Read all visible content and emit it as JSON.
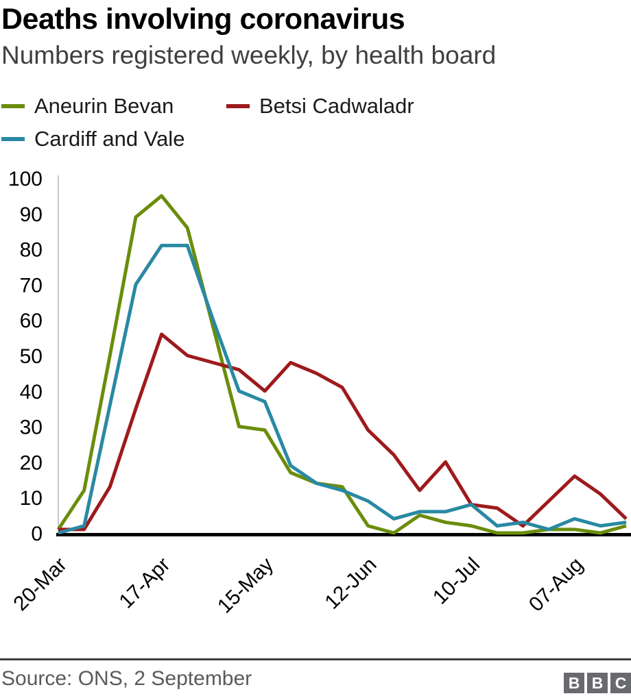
{
  "header": {
    "title": "Deaths involving coronavirus",
    "subtitle": "Numbers registered weekly, by health board"
  },
  "chart_data": {
    "type": "line",
    "title": "Deaths involving coronavirus",
    "subtitle": "Numbers registered weekly, by health board",
    "x": [
      "20-Mar",
      "27-Mar",
      "03-Apr",
      "10-Apr",
      "17-Apr",
      "24-Apr",
      "01-May",
      "08-May",
      "15-May",
      "22-May",
      "29-May",
      "05-Jun",
      "12-Jun",
      "19-Jun",
      "26-Jun",
      "03-Jul",
      "10-Jul",
      "17-Jul",
      "24-Jul",
      "31-Jul",
      "07-Aug",
      "14-Aug",
      "21-Aug"
    ],
    "x_tick_labels": [
      "20-Mar",
      "17-Apr",
      "15-May",
      "12-Jun",
      "10-Jul",
      "07-Aug"
    ],
    "x_tick_indices": [
      0,
      4,
      8,
      12,
      16,
      20
    ],
    "ylim": [
      0,
      100
    ],
    "yticks": [
      0,
      10,
      20,
      30,
      40,
      50,
      60,
      70,
      80,
      90,
      100
    ],
    "grid": false,
    "legend_position": "top-left",
    "axis_color": "#c8c8c8",
    "baseline_color": "#000000",
    "series": [
      {
        "name": "Aneurin Bevan",
        "color": "#6a8d0b",
        "values": [
          1,
          12,
          50,
          89,
          95,
          86,
          58,
          30,
          29,
          17,
          14,
          13,
          2,
          0,
          5,
          3,
          2,
          0,
          0,
          1,
          1,
          0,
          2
        ]
      },
      {
        "name": "Betsi Cadwaladr",
        "color": "#9e1a1c",
        "values": [
          1,
          1,
          13,
          35,
          56,
          50,
          48,
          46,
          40,
          48,
          45,
          41,
          29,
          22,
          12,
          20,
          8,
          7,
          2,
          9,
          16,
          11,
          4
        ]
      },
      {
        "name": "Cardiff and Vale",
        "color": "#2989a3",
        "values": [
          0,
          2,
          36,
          70,
          81,
          81,
          60,
          40,
          37,
          19,
          14,
          12,
          9,
          4,
          6,
          6,
          8,
          2,
          3,
          1,
          4,
          2,
          3
        ]
      }
    ]
  },
  "footer": {
    "source": "Source: ONS, 2 September",
    "logo_letters": [
      "B",
      "B",
      "C"
    ]
  }
}
